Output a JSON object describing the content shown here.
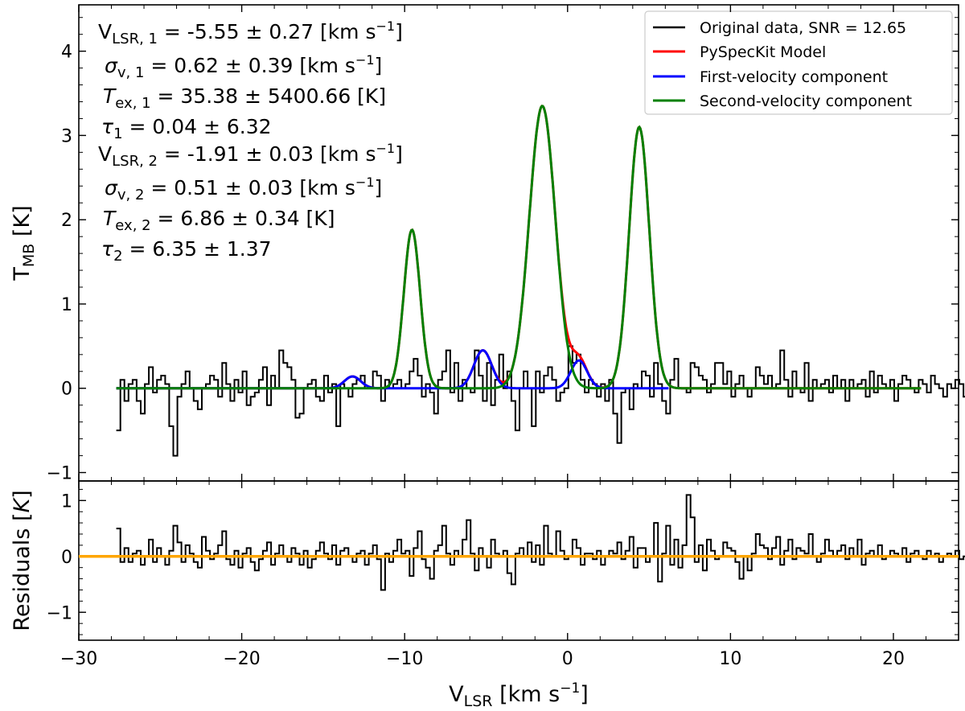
{
  "chart_data": [
    {
      "type": "line",
      "panel": "spectrum",
      "ylabel": "T_MB [K]",
      "xlim": [
        -30,
        24
      ],
      "ylim": [
        -1.1,
        4.55
      ],
      "yticks": [
        -1,
        0,
        1,
        2,
        3,
        4
      ],
      "ytick_labels": [
        "−1",
        "0",
        "1",
        "2",
        "3",
        "4"
      ],
      "annotations": [
        "V_LSR,1 = -5.55 ± 0.27 [km s⁻¹]",
        "σ_v,1 = 0.62 ± 0.39 [km s⁻¹]",
        "T_ex,1 = 35.38 ± 5400.66 [K]",
        "τ_1 = 0.04 ± 6.32",
        "V_LSR,2 = -1.91 ± 0.03 [km s⁻¹]",
        "σ_v,2 = 0.51 ± 0.03 [km s⁻¹]",
        "T_ex,2 = 6.86 ± 0.34 [K]",
        "τ_2 = 6.35 ± 1.37"
      ],
      "legend": {
        "location": "top-right",
        "entries": [
          {
            "label": "Original data, SNR = 12.65",
            "color": "#000000"
          },
          {
            "label": "PySpecKit Model",
            "color": "#ff0000"
          },
          {
            "label": "First-velocity component",
            "color": "#0000ff"
          },
          {
            "label": "Second-velocity component",
            "color": "#008000"
          }
        ]
      },
      "series": [
        {
          "name": "Original data, SNR = 12.65",
          "style": "steps",
          "color": "#000000",
          "x_start": -27.7,
          "x_step": 0.25,
          "values": [
            -0.5,
            0.1,
            -0.15,
            0.05,
            0.1,
            -0.15,
            -0.3,
            0.05,
            0.25,
            -0.05,
            0.1,
            0.15,
            0.05,
            -0.45,
            -0.8,
            -0.1,
            0.05,
            0.2,
            0.0,
            -0.15,
            -0.25,
            0.0,
            0.05,
            0.15,
            0.1,
            -0.1,
            0.3,
            0.05,
            -0.15,
            0.1,
            -0.05,
            0.2,
            -0.2,
            -0.1,
            -0.05,
            0.1,
            0.25,
            -0.2,
            0.15,
            0.0,
            0.45,
            0.3,
            0.25,
            0.1,
            -0.35,
            -0.3,
            0.0,
            0.05,
            0.1,
            -0.1,
            -0.15,
            0.15,
            -0.05,
            0.05,
            -0.45,
            0.05,
            0.0,
            -0.1,
            0.05,
            0.1,
            0.15,
            0.0,
            0.0,
            0.2,
            0.15,
            -0.15,
            0.1,
            0.0,
            0.05,
            0.1,
            0.0,
            0.05,
            0.2,
            0.35,
            0.15,
            -0.1,
            0.05,
            -0.05,
            -0.3,
            0.1,
            0.2,
            0.45,
            -0.05,
            0.3,
            -0.15,
            0.1,
            0.0,
            -0.05,
            0.45,
            0.15,
            -0.15,
            0.3,
            -0.2,
            0.1,
            0.4,
            0.0,
            0.2,
            -0.15,
            -0.5,
            0.0,
            0.2,
            0.0,
            -0.45,
            0.2,
            -0.05,
            0.15,
            0.25,
            0.1,
            -0.15,
            -0.05,
            0.0,
            0.5,
            0.3,
            0.4,
            0.1,
            -0.05,
            0.1,
            0.05,
            -0.1,
            0.05,
            -0.15,
            0.1,
            -0.3,
            -0.65,
            -0.05,
            0.0,
            -0.25,
            0.05,
            0.0,
            0.2,
            0.15,
            -0.1,
            0.3,
            0.05,
            -0.15,
            -0.3,
            0.1,
            0.35,
            0.0,
            0.0,
            -0.05,
            0.3,
            0.25,
            0.15,
            0.1,
            -0.05,
            0.05,
            0.3,
            0.3,
            0.05,
            0.2,
            -0.1,
            0.05,
            0.15,
            0.0,
            -0.1,
            0.0,
            0.25,
            0.15,
            0.05,
            0.15,
            0.0,
            0.05,
            0.45,
            0.1,
            -0.1,
            0.2,
            0.0,
            -0.05,
            0.3,
            -0.15,
            0.1,
            0.0,
            0.05,
            0.1,
            -0.05,
            0.15,
            0.0,
            0.1,
            -0.15,
            0.1,
            0.0,
            0.05,
            0.1,
            -0.1,
            0.2,
            -0.05,
            0.15,
            0.05,
            0.0,
            0.1,
            -0.15,
            0.05,
            0.15,
            0.1,
            0.0,
            -0.05,
            0.1,
            0.05,
            -0.05,
            0.15,
            0.05,
            0.0,
            -0.1,
            0.05,
            0.0,
            0.1,
            0.05,
            -0.1,
            0.0
          ]
        },
        {
          "name": "PySpecKit Model",
          "style": "line",
          "color": "#ff0000",
          "x_range": [
            -27.7,
            21.7
          ],
          "components_summed": true
        },
        {
          "name": "First-velocity component",
          "style": "line",
          "color": "#0000ff",
          "x_range": [
            -27.7,
            6.2
          ],
          "peaks": [
            {
              "x": -13.2,
              "amp": 0.14,
              "sigma": 0.5
            },
            {
              "x": -5.2,
              "amp": 0.45,
              "sigma": 0.55
            },
            {
              "x": 0.7,
              "amp": 0.33,
              "sigma": 0.5
            }
          ]
        },
        {
          "name": "Second-velocity component",
          "style": "line",
          "color": "#008000",
          "x_range": [
            -27.7,
            21.7
          ],
          "peaks": [
            {
              "x": -9.55,
              "amp": 1.88,
              "sigma": 0.5
            },
            {
              "x": -1.55,
              "amp": 3.35,
              "sigma": 0.8
            },
            {
              "x": 4.4,
              "amp": 3.1,
              "sigma": 0.62
            }
          ]
        }
      ]
    },
    {
      "type": "line",
      "panel": "residuals",
      "xlabel": "V_LSR [km s⁻¹]",
      "ylabel": "Residuals [K]",
      "xlim": [
        -30,
        24
      ],
      "ylim": [
        -1.5,
        1.35
      ],
      "xticks": [
        -30,
        -20,
        -10,
        0,
        10,
        20
      ],
      "xtick_labels": [
        "−30",
        "−20",
        "−10",
        "0",
        "10",
        "20"
      ],
      "yticks": [
        -1,
        0,
        1
      ],
      "ytick_labels": [
        "−1",
        "0",
        "1"
      ],
      "zero_line_color": "#ffa500",
      "series": [
        {
          "name": "Residuals",
          "style": "steps",
          "color": "#000000",
          "x_start": -27.7,
          "x_step": 0.25,
          "values": [
            0.5,
            -0.1,
            0.15,
            -0.1,
            0.05,
            0.1,
            -0.15,
            0.0,
            0.3,
            -0.1,
            0.15,
            0.0,
            -0.15,
            0.1,
            0.55,
            0.25,
            -0.1,
            0.2,
            0.05,
            -0.1,
            -0.2,
            0.35,
            0.1,
            -0.05,
            0.05,
            0.2,
            0.45,
            -0.05,
            -0.15,
            0.1,
            -0.2,
            0.05,
            0.15,
            -0.1,
            -0.25,
            -0.05,
            0.1,
            0.25,
            -0.15,
            0.05,
            0.2,
            0.0,
            -0.1,
            0.15,
            0.05,
            -0.15,
            0.1,
            -0.2,
            -0.05,
            0.1,
            0.25,
            0.05,
            -0.05,
            0.2,
            -0.15,
            0.1,
            0.15,
            0.0,
            -0.1,
            0.05,
            0.1,
            -0.15,
            0.05,
            0.2,
            -0.05,
            -0.6,
            0.05,
            -0.1,
            0.1,
            0.3,
            0.05,
            0.1,
            -0.35,
            0.15,
            0.45,
            -0.05,
            -0.2,
            -0.4,
            0.1,
            0.2,
            0.55,
            0.05,
            -0.15,
            0.1,
            0.0,
            0.3,
            0.65,
            0.05,
            -0.25,
            0.15,
            0.0,
            -0.2,
            0.3,
            0.05,
            0.0,
            0.1,
            -0.3,
            -0.5,
            0.05,
            0.15,
            0.0,
            0.25,
            -0.1,
            0.2,
            -0.15,
            0.55,
            0.05,
            0.0,
            0.45,
            0.1,
            -0.05,
            0.0,
            0.3,
            0.15,
            -0.15,
            0.05,
            0.05,
            -0.05,
            0.1,
            -0.15,
            0.0,
            0.1,
            0.05,
            0.25,
            -0.05,
            0.1,
            0.35,
            -0.2,
            0.15,
            0.15,
            -0.1,
            0.0,
            0.6,
            -0.45,
            0.05,
            0.55,
            -0.15,
            0.3,
            -0.2,
            0.2,
            1.1,
            0.7,
            -0.1,
            0.2,
            -0.25,
            0.3,
            0.1,
            -0.05,
            0.0,
            0.25,
            0.15,
            0.1,
            -0.1,
            -0.4,
            0.0,
            -0.25,
            0.05,
            0.4,
            0.2,
            0.15,
            -0.05,
            0.15,
            0.35,
            -0.15,
            0.1,
            0.3,
            -0.05,
            0.15,
            0.1,
            0.05,
            0.4,
            0.0,
            -0.1,
            0.05,
            0.3,
            0.1,
            0.0,
            0.1,
            0.2,
            -0.05,
            0.15,
            0.0,
            0.3,
            -0.15,
            0.05,
            0.1,
            0.0,
            0.2,
            -0.05,
            0.0,
            0.1,
            0.05,
            0.0,
            0.15,
            -0.1,
            0.05,
            0.1,
            0.0,
            -0.05,
            0.1,
            0.0,
            0.05,
            -0.1,
            0.0,
            0.05,
            0.0,
            0.1,
            -0.05,
            0.0
          ]
        }
      ]
    }
  ]
}
